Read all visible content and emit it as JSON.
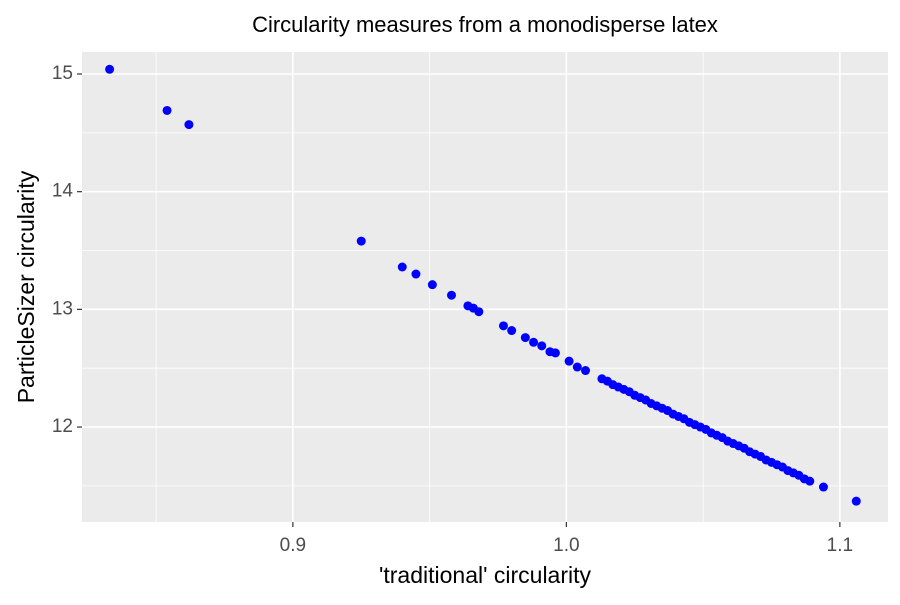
{
  "chart_data": {
    "type": "scatter",
    "title": "Circularity measures from a monodisperse latex",
    "x_label": "'traditional' circularity",
    "y_label": "ParticleSizer circularity",
    "color": "#0000ff",
    "x": [
      0.833,
      0.854,
      0.862,
      0.925,
      0.94,
      0.945,
      0.951,
      0.958,
      0.964,
      0.966,
      0.968,
      0.977,
      0.98,
      0.985,
      0.988,
      0.991,
      0.994,
      0.996,
      1.001,
      1.004,
      1.007,
      1.013,
      1.015,
      1.017,
      1.019,
      1.021,
      1.023,
      1.025,
      1.027,
      1.029,
      1.031,
      1.033,
      1.035,
      1.037,
      1.039,
      1.041,
      1.043,
      1.045,
      1.047,
      1.049,
      1.051,
      1.053,
      1.055,
      1.057,
      1.059,
      1.061,
      1.063,
      1.065,
      1.067,
      1.069,
      1.071,
      1.073,
      1.075,
      1.077,
      1.079,
      1.081,
      1.083,
      1.085,
      1.087,
      1.089,
      1.094,
      1.106
    ],
    "values": [
      15.04,
      14.69,
      14.57,
      13.58,
      13.36,
      13.3,
      13.21,
      13.12,
      13.03,
      13.01,
      12.98,
      12.86,
      12.82,
      12.76,
      12.72,
      12.69,
      12.64,
      12.63,
      12.56,
      12.51,
      12.48,
      12.41,
      12.39,
      12.36,
      12.34,
      12.32,
      12.3,
      12.27,
      12.25,
      12.23,
      12.2,
      12.18,
      12.16,
      12.14,
      12.11,
      12.09,
      12.07,
      12.04,
      12.02,
      12.0,
      11.98,
      11.95,
      11.93,
      11.91,
      11.88,
      11.86,
      11.84,
      11.82,
      11.79,
      11.77,
      11.75,
      11.72,
      11.7,
      11.68,
      11.66,
      11.63,
      11.61,
      11.59,
      11.56,
      11.54,
      11.49,
      11.37
    ],
    "xlim": [
      0.8229,
      1.1176
    ],
    "ylim": [
      11.193,
      15.187
    ],
    "xticks": [
      0.9,
      {
        "value": 1.0,
        "label": "1.0"
      },
      1.1
    ],
    "yticks": [
      12,
      13,
      14,
      15
    ],
    "xminor": [
      0.85,
      0.95,
      1.05
    ],
    "yminor": [
      11.5,
      12.5,
      13.5,
      14.5
    ],
    "grid": true
  }
}
